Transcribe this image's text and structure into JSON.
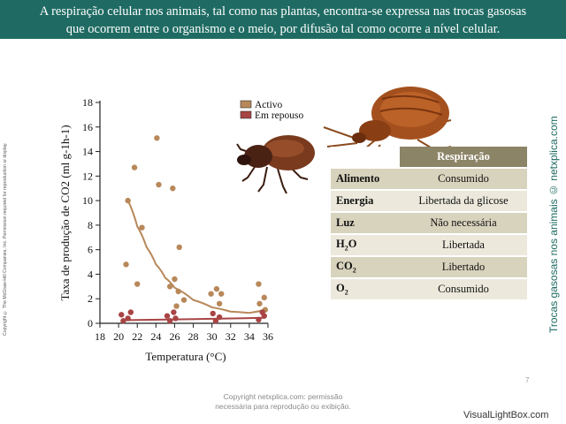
{
  "header": {
    "line1": "A respiração celular nos animais, tal como nas plantas, encontra-se expressa nas trocas gasosas",
    "line2": "que ocorrem entre o organismo e o meio, por difusão tal como ocorre a nível celular."
  },
  "copyright_vertical": "Copyright © The McGraw-Hill Companies, Inc. Permission required for reproduction or display.",
  "side_caption": "Trocas gasosas nos animais © netxplica.com",
  "chart_data": {
    "type": "scatter",
    "xlabel": "Temperatura (°C)",
    "ylabel": "Taxa de produção de CO2 (ml g-1h-1)",
    "xlim": [
      18,
      36
    ],
    "ylim": [
      0,
      18
    ],
    "x_ticks": [
      18,
      20,
      22,
      24,
      26,
      28,
      30,
      32,
      34,
      36
    ],
    "y_ticks": [
      0,
      2,
      4,
      6,
      8,
      10,
      12,
      14,
      16,
      18
    ],
    "legend_position": "top-right",
    "series": [
      {
        "name": "Activo",
        "color": "#b8885a",
        "points": [
          {
            "x": 20.8,
            "y": 4.8
          },
          {
            "x": 21.0,
            "y": 10.0
          },
          {
            "x": 21.7,
            "y": 12.7
          },
          {
            "x": 22.0,
            "y": 3.2
          },
          {
            "x": 22.5,
            "y": 7.8
          },
          {
            "x": 24.1,
            "y": 15.1
          },
          {
            "x": 24.3,
            "y": 11.3
          },
          {
            "x": 25.5,
            "y": 3.0
          },
          {
            "x": 25.8,
            "y": 11.0
          },
          {
            "x": 26.0,
            "y": 3.6
          },
          {
            "x": 26.2,
            "y": 1.4
          },
          {
            "x": 26.4,
            "y": 2.6
          },
          {
            "x": 26.5,
            "y": 6.2
          },
          {
            "x": 27.0,
            "y": 1.9
          },
          {
            "x": 29.9,
            "y": 2.4
          },
          {
            "x": 30.5,
            "y": 2.8
          },
          {
            "x": 30.8,
            "y": 1.6
          },
          {
            "x": 31.0,
            "y": 2.4
          },
          {
            "x": 35.0,
            "y": 3.2
          },
          {
            "x": 35.1,
            "y": 1.6
          },
          {
            "x": 35.6,
            "y": 2.1
          },
          {
            "x": 35.7,
            "y": 1.1
          }
        ],
        "trend": [
          {
            "x": 21.0,
            "y": 10.0
          },
          {
            "x": 22.0,
            "y": 7.9
          },
          {
            "x": 23.0,
            "y": 6.2
          },
          {
            "x": 24.0,
            "y": 4.8
          },
          {
            "x": 25.0,
            "y": 3.7
          },
          {
            "x": 26.0,
            "y": 2.9
          },
          {
            "x": 28.0,
            "y": 1.9
          },
          {
            "x": 30.0,
            "y": 1.3
          },
          {
            "x": 32.0,
            "y": 0.95
          },
          {
            "x": 34.0,
            "y": 0.85
          },
          {
            "x": 35.7,
            "y": 1.1
          }
        ]
      },
      {
        "name": "Em repouso",
        "color": "#a84444",
        "points": [
          {
            "x": 20.3,
            "y": 0.7
          },
          {
            "x": 20.5,
            "y": 0.2
          },
          {
            "x": 21.0,
            "y": 0.4
          },
          {
            "x": 21.3,
            "y": 0.9
          },
          {
            "x": 25.2,
            "y": 0.6
          },
          {
            "x": 25.5,
            "y": 0.2
          },
          {
            "x": 25.9,
            "y": 0.9
          },
          {
            "x": 26.1,
            "y": 0.4
          },
          {
            "x": 30.1,
            "y": 0.8
          },
          {
            "x": 30.4,
            "y": 0.2
          },
          {
            "x": 30.8,
            "y": 0.5
          },
          {
            "x": 35.0,
            "y": 0.3
          },
          {
            "x": 35.4,
            "y": 0.9
          },
          {
            "x": 35.6,
            "y": 0.6
          }
        ],
        "trend": [
          {
            "x": 20.3,
            "y": 0.25
          },
          {
            "x": 35.6,
            "y": 0.45
          }
        ]
      }
    ]
  },
  "table": {
    "title": "Respiração",
    "rows": [
      {
        "key": "Alimento",
        "value": "Consumido"
      },
      {
        "key": "Energia",
        "value": "Libertada da glicose"
      },
      {
        "key": "Luz",
        "value": "Não necessária"
      },
      {
        "key_main": "H",
        "key_sub": "2",
        "key_tail": "O",
        "value": "Libertada"
      },
      {
        "key_main": "CO",
        "key_sub": "2",
        "key_tail": "",
        "value": "Libertado"
      },
      {
        "key_main": "O",
        "key_sub": "2",
        "key_tail": "",
        "value": "Consumido"
      }
    ]
  },
  "footer": {
    "line1": "Copyright netxplica.com: permissão",
    "line2": "necessária para reprodução ou exibição."
  },
  "page_number": "7",
  "watermark": "VisualLightBox.com"
}
